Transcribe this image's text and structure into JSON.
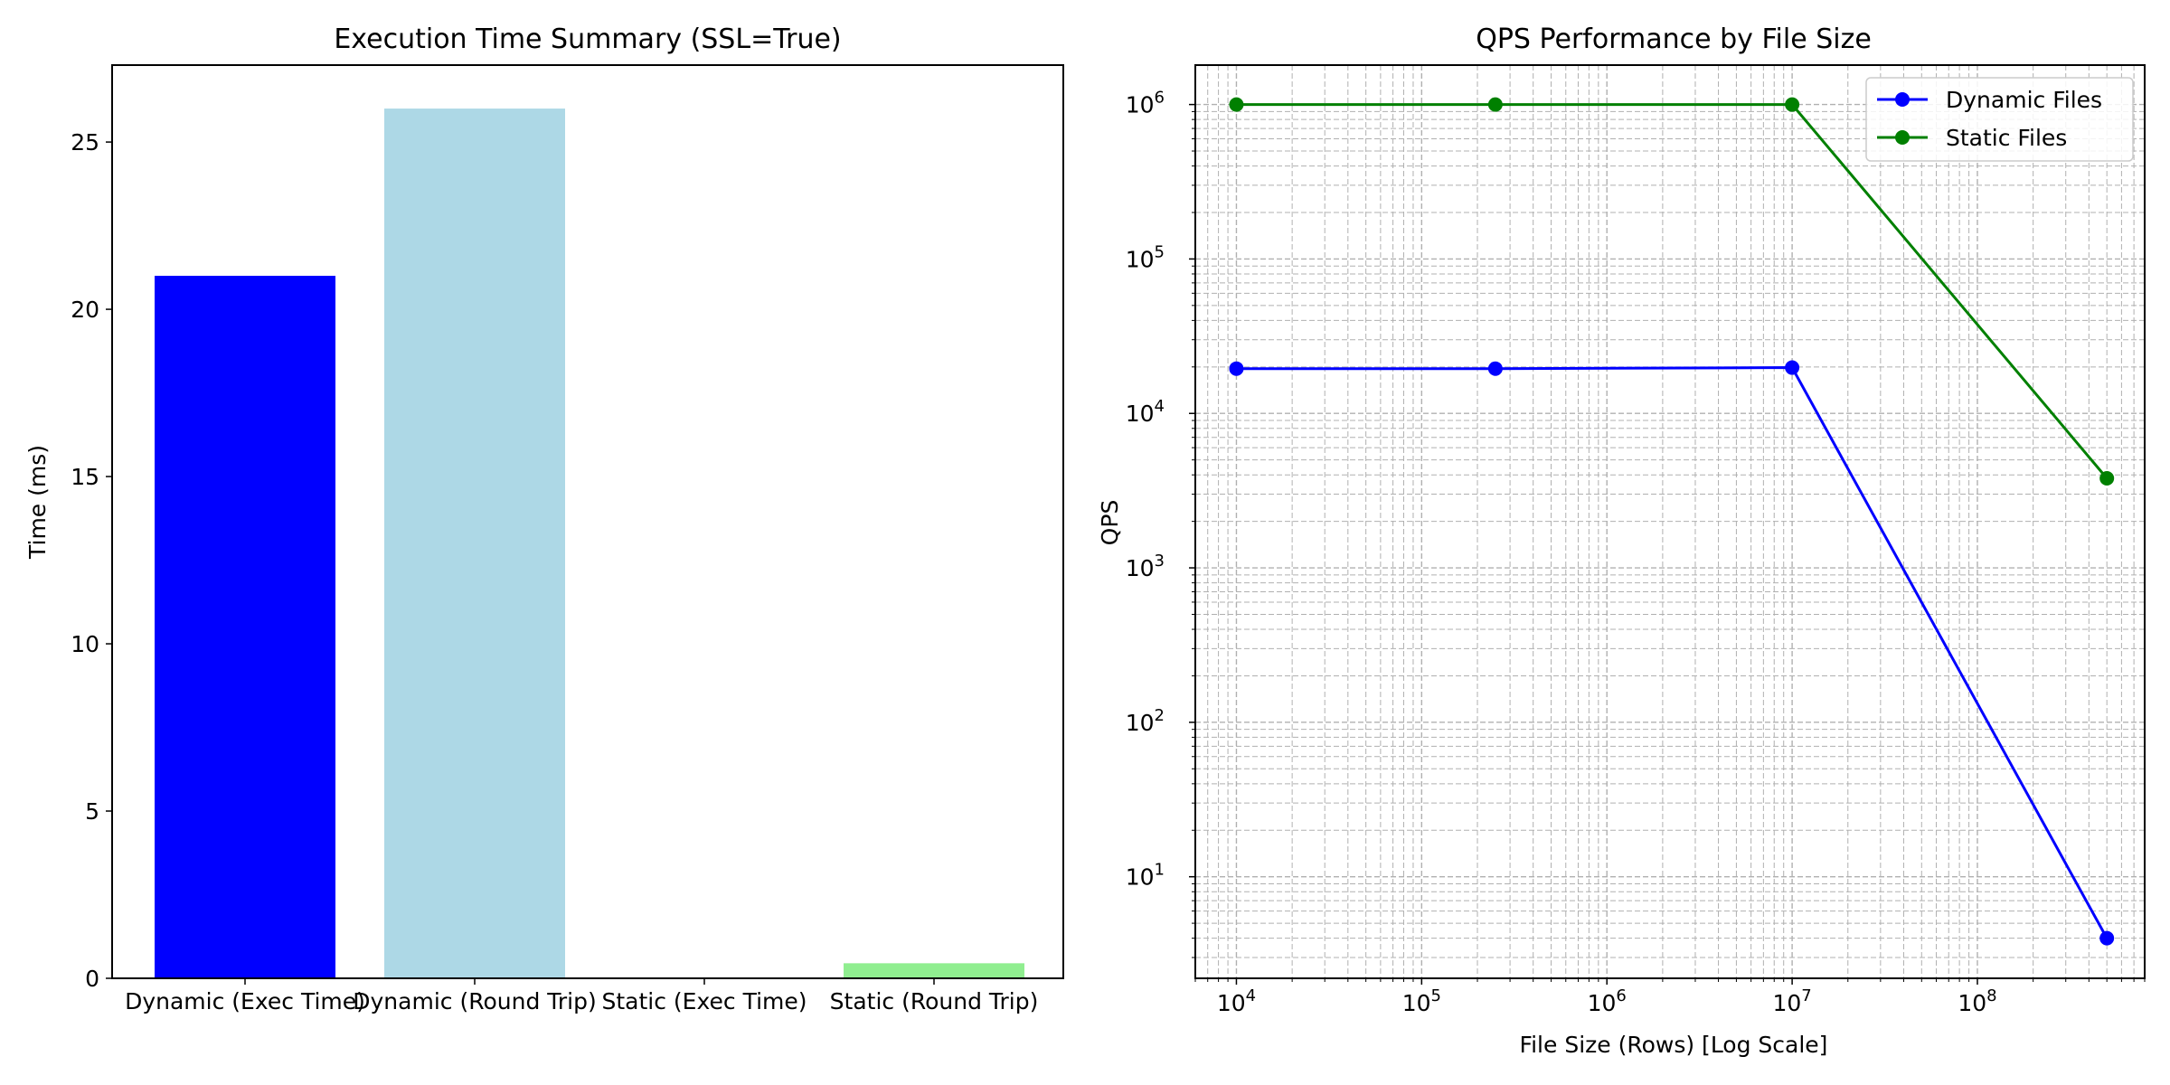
{
  "chart_data": [
    {
      "type": "bar",
      "title": "Execution Time Summary (SSL=True)",
      "xlabel": "",
      "ylabel": "Time (ms)",
      "ylim": [
        0,
        27.3
      ],
      "yticks": [
        0,
        5,
        10,
        15,
        20,
        25
      ],
      "grid": false,
      "categories": [
        "Dynamic (Exec Time)",
        "Dynamic (Round Trip)",
        "Static (Exec Time)",
        "Static (Round Trip)"
      ],
      "values": [
        21.0,
        26.0,
        0.0,
        0.45
      ],
      "colors": [
        "#0000ff",
        "#add8e6",
        "#006400",
        "#90ee90"
      ]
    },
    {
      "type": "line",
      "title": "QPS Performance by File Size",
      "xlabel": "File Size (Rows) [Log Scale]",
      "ylabel": "QPS",
      "xscale": "log",
      "yscale": "log",
      "xlim": [
        6000,
        800000000
      ],
      "ylim": [
        2.2,
        1800000
      ],
      "grid": true,
      "grid_style": "dashed, major and minor",
      "legend_position": "upper right",
      "xticks": [
        {
          "value": 10000,
          "base": "10",
          "exp": "4"
        },
        {
          "value": 100000,
          "base": "10",
          "exp": "5"
        },
        {
          "value": 1000000,
          "base": "10",
          "exp": "6"
        },
        {
          "value": 10000000,
          "base": "10",
          "exp": "7"
        },
        {
          "value": 100000000,
          "base": "10",
          "exp": "8"
        }
      ],
      "yticks": [
        {
          "value": 10,
          "base": "10",
          "exp": "1"
        },
        {
          "value": 100,
          "base": "10",
          "exp": "2"
        },
        {
          "value": 1000,
          "base": "10",
          "exp": "3"
        },
        {
          "value": 10000,
          "base": "10",
          "exp": "4"
        },
        {
          "value": 100000,
          "base": "10",
          "exp": "5"
        },
        {
          "value": 1000000,
          "base": "10",
          "exp": "6"
        }
      ],
      "series": [
        {
          "name": "Dynamic Files",
          "color": "#0000ff",
          "x": [
            10000,
            250000,
            10000000,
            500000000
          ],
          "y": [
            19500,
            19500,
            19800,
            4
          ]
        },
        {
          "name": "Static Files",
          "color": "#008000",
          "x": [
            10000,
            250000,
            10000000,
            500000000
          ],
          "y": [
            1000000,
            1000000,
            1000000,
            3800
          ]
        }
      ]
    }
  ]
}
